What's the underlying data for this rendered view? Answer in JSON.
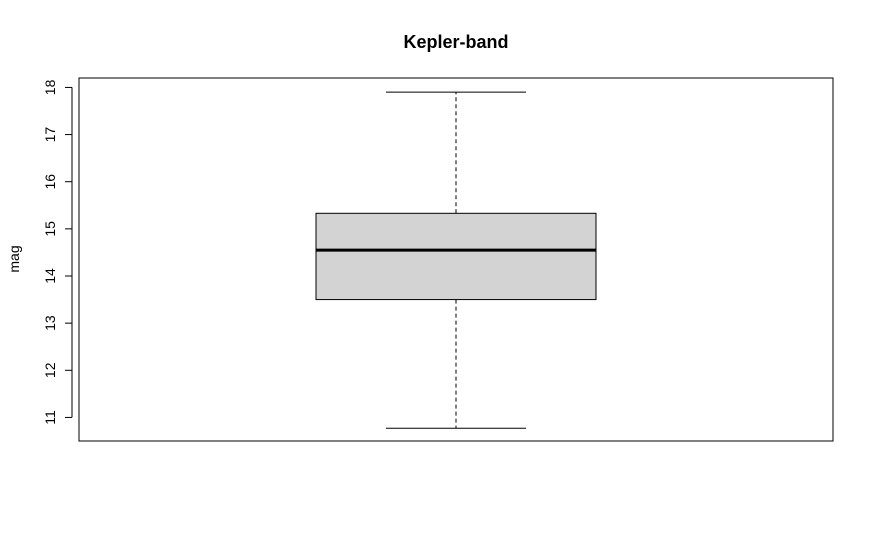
{
  "chart_data": {
    "type": "boxplot",
    "title": "Kepler-band",
    "xlabel": "",
    "ylabel": "mag",
    "ylim": [
      10.5,
      18.2
    ],
    "yticks": [
      "11",
      "12",
      "13",
      "14",
      "15",
      "16",
      "17",
      "18"
    ],
    "grid": false,
    "box": {
      "whisker_low": 10.77,
      "q1": 13.5,
      "median": 14.55,
      "q3": 15.33,
      "whisker_high": 17.9
    },
    "colors": {
      "box_fill": "#d3d3d3",
      "stroke": "#000000"
    }
  }
}
